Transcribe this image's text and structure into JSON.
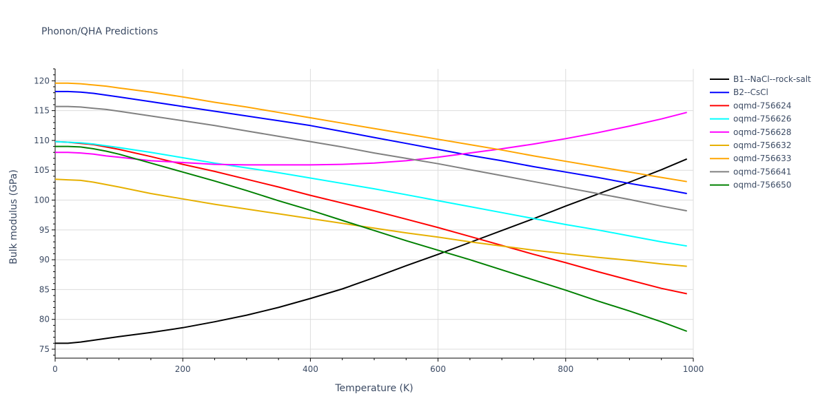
{
  "chart_data": {
    "type": "line",
    "title": "Phonon/QHA Predictions",
    "xlabel": "Temperature (K)",
    "ylabel": "Bulk modulus (GPa)",
    "xlim": [
      0,
      1000
    ],
    "ylim": [
      73.5,
      122
    ],
    "xticks": [
      0,
      200,
      400,
      600,
      800,
      1000
    ],
    "yticks": [
      75,
      80,
      85,
      90,
      95,
      100,
      105,
      110,
      115,
      120
    ],
    "grid": true,
    "legend_position": "right",
    "x": [
      0,
      20,
      40,
      60,
      80,
      100,
      150,
      200,
      250,
      300,
      350,
      400,
      450,
      500,
      550,
      600,
      650,
      700,
      750,
      800,
      850,
      900,
      950,
      990
    ],
    "series": [
      {
        "name": "B1--NaCl--rock-salt",
        "color": "#000000",
        "values": [
          76.0,
          76.0,
          76.2,
          76.5,
          76.8,
          77.1,
          77.8,
          78.6,
          79.6,
          80.7,
          82.0,
          83.5,
          85.1,
          87.0,
          89.0,
          90.9,
          92.9,
          94.9,
          96.9,
          99.0,
          101.0,
          103.0,
          105.1,
          106.9
        ]
      },
      {
        "name": "B2--CsCl",
        "color": "#0000ff",
        "values": [
          118.2,
          118.2,
          118.1,
          117.9,
          117.6,
          117.3,
          116.5,
          115.7,
          114.9,
          114.1,
          113.3,
          112.5,
          111.5,
          110.5,
          109.5,
          108.5,
          107.5,
          106.6,
          105.6,
          104.7,
          103.8,
          102.8,
          101.9,
          101.1
        ]
      },
      {
        "name": "oqmd-756624",
        "color": "#ff0000",
        "values": [
          109.8,
          109.7,
          109.5,
          109.3,
          108.9,
          108.5,
          107.3,
          106.0,
          104.8,
          103.5,
          102.2,
          100.8,
          99.5,
          98.2,
          96.8,
          95.4,
          93.9,
          92.4,
          90.9,
          89.5,
          88.0,
          86.6,
          85.2,
          84.3
        ]
      },
      {
        "name": "oqmd-756626",
        "color": "#00ffff",
        "values": [
          109.8,
          109.7,
          109.6,
          109.4,
          109.1,
          108.8,
          108.0,
          107.1,
          106.2,
          105.4,
          104.6,
          103.7,
          102.8,
          101.9,
          100.9,
          99.9,
          98.9,
          97.9,
          96.9,
          95.9,
          95.0,
          94.0,
          93.0,
          92.3
        ]
      },
      {
        "name": "oqmd-756628",
        "color": "#ff00ff",
        "values": [
          108.0,
          108.0,
          107.9,
          107.7,
          107.4,
          107.2,
          106.6,
          106.3,
          106.0,
          105.9,
          105.9,
          105.9,
          106.0,
          106.2,
          106.6,
          107.2,
          107.9,
          108.6,
          109.4,
          110.3,
          111.3,
          112.4,
          113.6,
          114.7
        ]
      },
      {
        "name": "oqmd-756632",
        "color": "#e6b000",
        "values": [
          103.5,
          103.4,
          103.3,
          103.0,
          102.6,
          102.2,
          101.1,
          100.2,
          99.3,
          98.5,
          97.7,
          96.9,
          96.1,
          95.3,
          94.5,
          93.8,
          93.0,
          92.3,
          91.6,
          91.0,
          90.4,
          89.9,
          89.3,
          88.9
        ]
      },
      {
        "name": "oqmd-756633",
        "color": "#ffa500",
        "values": [
          119.6,
          119.6,
          119.5,
          119.3,
          119.1,
          118.8,
          118.1,
          117.3,
          116.4,
          115.6,
          114.7,
          113.8,
          112.9,
          112.0,
          111.1,
          110.2,
          109.3,
          108.4,
          107.4,
          106.5,
          105.6,
          104.7,
          103.8,
          103.1
        ]
      },
      {
        "name": "oqmd-756641",
        "color": "#808080",
        "values": [
          115.7,
          115.7,
          115.6,
          115.4,
          115.2,
          114.9,
          114.1,
          113.3,
          112.5,
          111.6,
          110.7,
          109.8,
          108.9,
          107.9,
          107.0,
          106.1,
          105.1,
          104.1,
          103.1,
          102.1,
          101.1,
          100.1,
          99.0,
          98.2
        ]
      },
      {
        "name": "oqmd-756650",
        "color": "#008000",
        "values": [
          109.0,
          109.0,
          108.9,
          108.6,
          108.2,
          107.7,
          106.2,
          104.7,
          103.2,
          101.6,
          99.9,
          98.3,
          96.6,
          94.9,
          93.2,
          91.6,
          90.0,
          88.3,
          86.6,
          84.9,
          83.1,
          81.4,
          79.6,
          78.0
        ]
      }
    ]
  }
}
